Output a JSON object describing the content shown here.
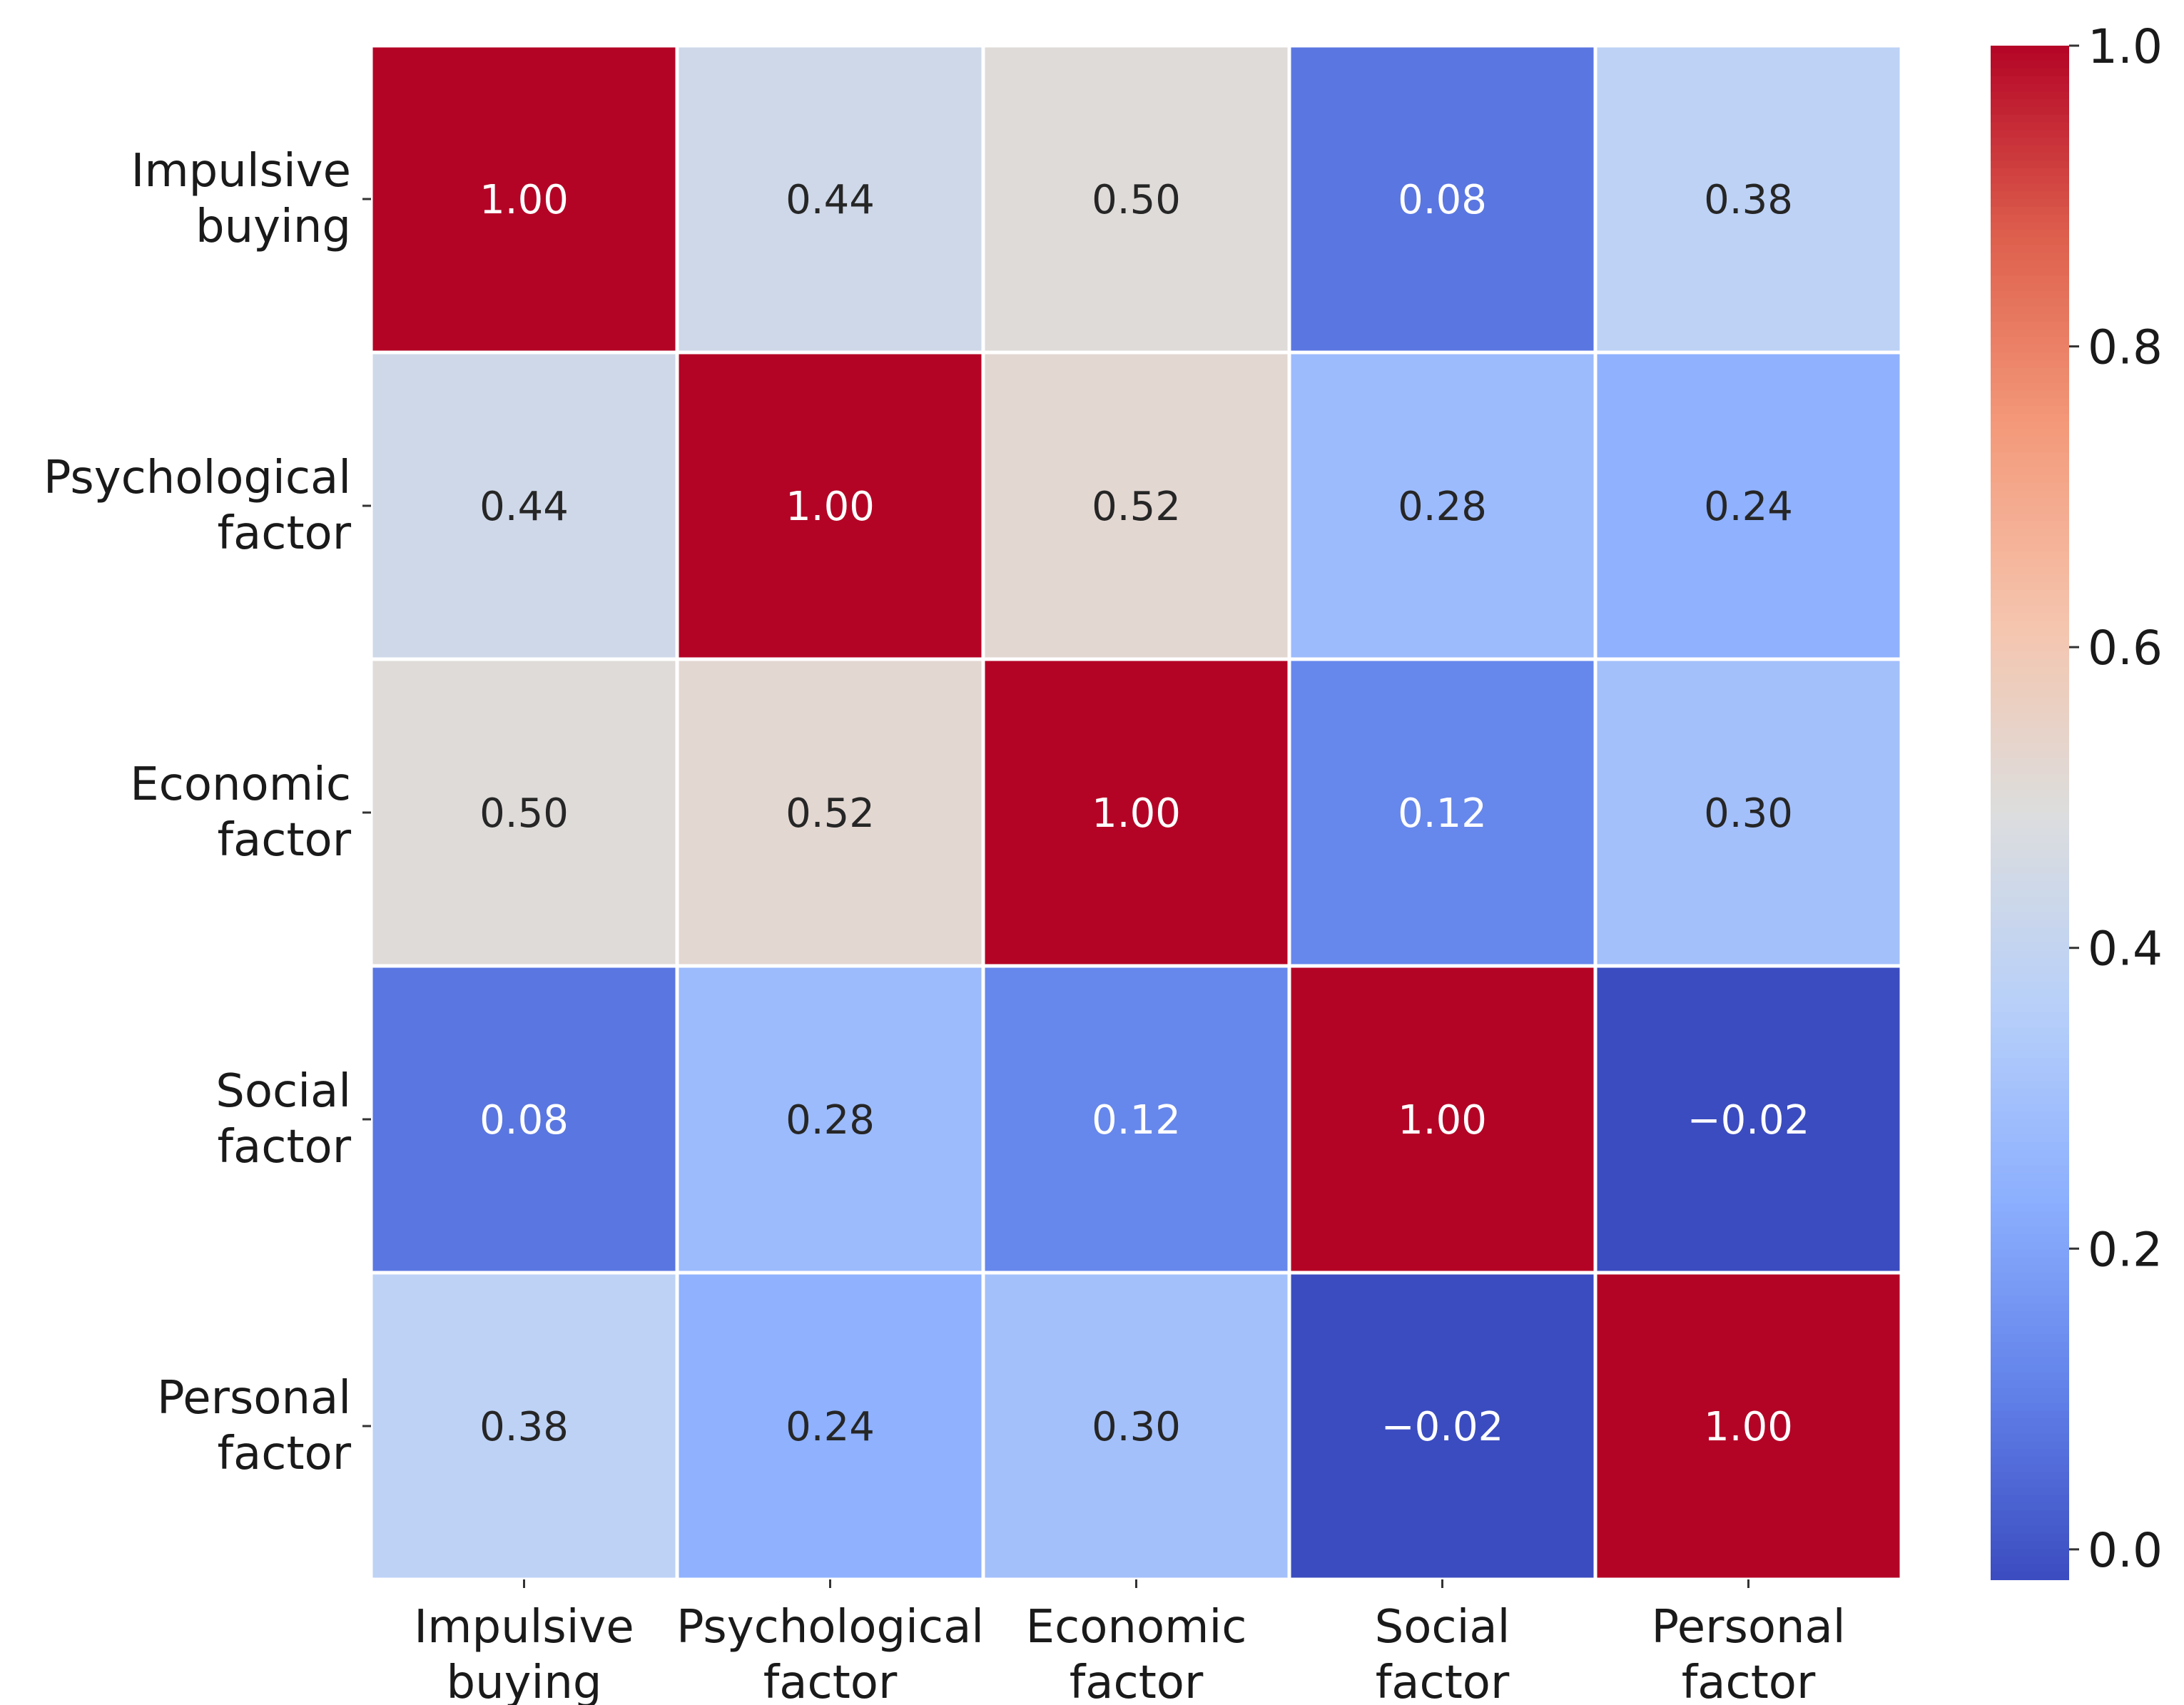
{
  "chart_data": {
    "type": "heatmap",
    "title": "",
    "xlabel": "",
    "ylabel": "",
    "categories": [
      [
        "Impulsive",
        "buying"
      ],
      [
        "Psychological",
        "factor"
      ],
      [
        "Economic",
        "factor"
      ],
      [
        "Social",
        "factor"
      ],
      [
        "Personal",
        "factor"
      ]
    ],
    "matrix": [
      [
        1.0,
        0.44,
        0.5,
        0.08,
        0.38
      ],
      [
        0.44,
        1.0,
        0.52,
        0.28,
        0.24
      ],
      [
        0.5,
        0.52,
        1.0,
        0.12,
        0.3
      ],
      [
        0.08,
        0.28,
        0.12,
        1.0,
        -0.02
      ],
      [
        0.38,
        0.24,
        0.3,
        -0.02,
        1.0
      ]
    ],
    "value_format": "2 decimals, minus sign as −",
    "colormap": "coolwarm",
    "colorbar": {
      "range": [
        -0.02,
        1.0
      ],
      "ticks": [
        0.0,
        0.2,
        0.4,
        0.6,
        0.8,
        1.0
      ],
      "tick_labels": [
        "0.0",
        "0.2",
        "0.4",
        "0.6",
        "0.8",
        "1.0"
      ],
      "placement": "right"
    },
    "grid": false,
    "legend": "none"
  }
}
